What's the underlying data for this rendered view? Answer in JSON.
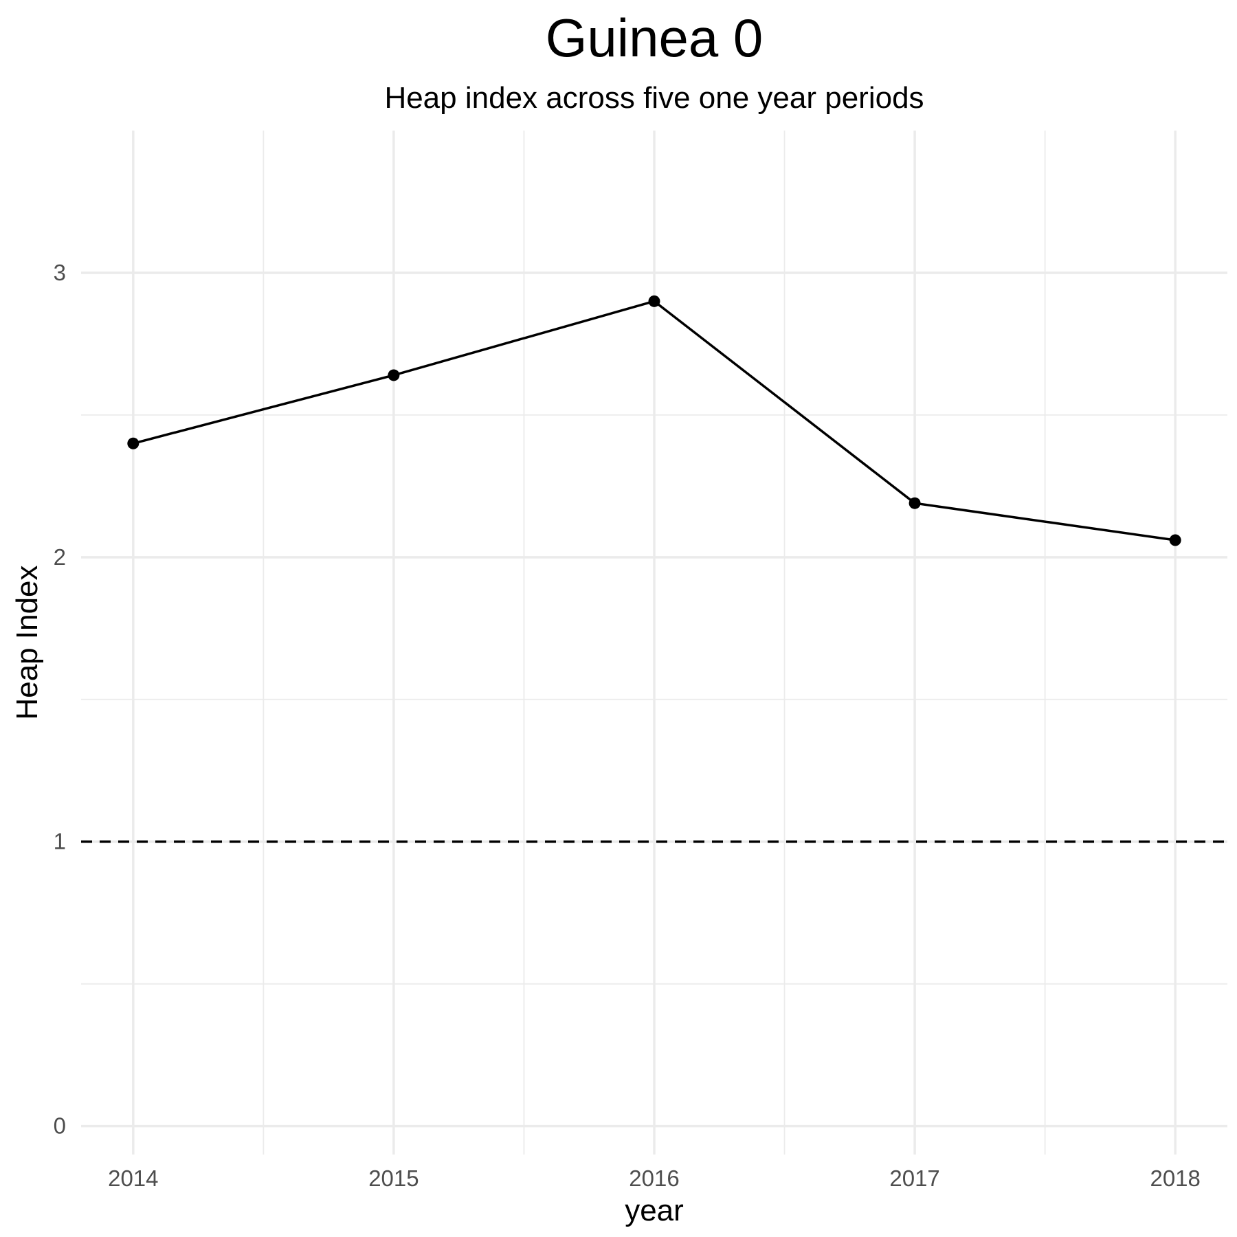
{
  "chart_data": {
    "type": "line",
    "title": "Guinea 0",
    "subtitle": "Heap index across five one year periods",
    "xlabel": "year",
    "ylabel": "Heap Index",
    "x": [
      2014,
      2015,
      2016,
      2017,
      2018
    ],
    "x_tick_labels": [
      "2014",
      "2015",
      "2016",
      "2017",
      "2018"
    ],
    "y_ticks": [
      0,
      1,
      2,
      3
    ],
    "y_tick_labels": [
      "0",
      "1",
      "2",
      "3"
    ],
    "xlim": [
      2013.8,
      2018.2
    ],
    "ylim": [
      -0.1,
      3.5
    ],
    "series": [
      {
        "values": [
          2.4,
          2.64,
          2.9,
          2.19,
          2.06
        ]
      }
    ],
    "reference_line": {
      "y": 1,
      "style": "dashed"
    },
    "grid": true,
    "legend": "none",
    "colors": {
      "line": "#000000",
      "points": "#000000",
      "reference": "#000000",
      "grid": "#ebebeb"
    }
  }
}
